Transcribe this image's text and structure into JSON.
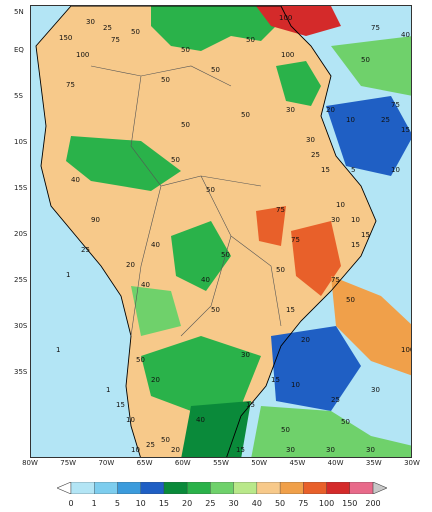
{
  "map": {
    "lat_labels": [
      "5N",
      "EQ",
      "5S",
      "10S",
      "15S",
      "20S",
      "25S",
      "30S",
      "35S"
    ],
    "lon_labels": [
      "80W",
      "75W",
      "70W",
      "65W",
      "60W",
      "55W",
      "50W",
      "45W",
      "40W",
      "35W",
      "30W"
    ],
    "contour_labels": [
      "100",
      "30",
      "25",
      "50",
      "150",
      "100",
      "75",
      "50",
      "50",
      "75",
      "50",
      "75",
      "100",
      "40",
      "50",
      "50",
      "30",
      "20",
      "10",
      "25",
      "75",
      "50",
      "50",
      "15",
      "50",
      "15",
      "30",
      "25",
      "5",
      "10",
      "40",
      "10",
      "50",
      "75",
      "30",
      "10",
      "90",
      "15",
      "40",
      "25",
      "75",
      "15",
      "50",
      "50",
      "20",
      "40",
      "1",
      "40",
      "75",
      "50",
      "50",
      "15",
      "50",
      "1",
      "20",
      "30",
      "15",
      "10",
      "100",
      "20",
      "15",
      "10",
      "25",
      "50",
      "30",
      "1",
      "10",
      "40",
      "15",
      "25",
      "20",
      "30",
      "30",
      "15",
      "50",
      "30",
      "50"
    ]
  },
  "legend": {
    "ticks": [
      "0",
      "1",
      "5",
      "10",
      "15",
      "20",
      "25",
      "30",
      "40",
      "50",
      "75",
      "100",
      "150",
      "200"
    ],
    "colors": [
      "#ffffff",
      "#b3e5f5",
      "#7dcdee",
      "#3b9bdc",
      "#1f5fc4",
      "#0a8a3a",
      "#2ab24a",
      "#6fd16b",
      "#b9e88a",
      "#f7c98a",
      "#f0a04a",
      "#e8602a",
      "#d42a2a",
      "#e86a8a",
      "#c8c8c8"
    ]
  }
}
